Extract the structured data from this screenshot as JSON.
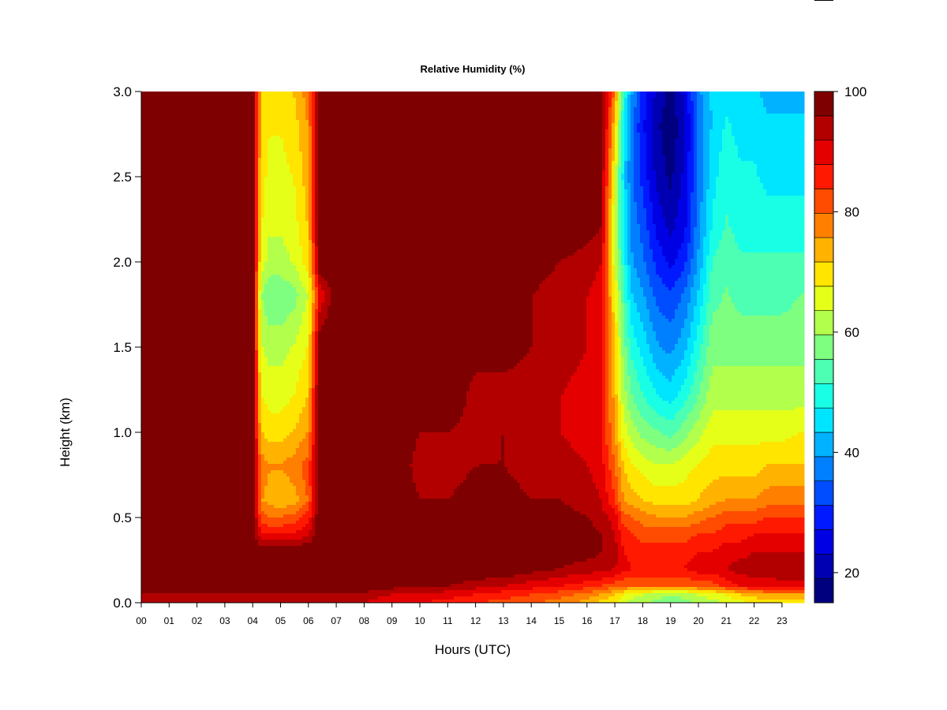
{
  "chart_data": {
    "type": "heatmap",
    "title": "Relative Humidity (%)",
    "xlabel": "Hours (UTC)",
    "ylabel": "Height (km)",
    "xlim": [
      0,
      23.8
    ],
    "ylim": [
      0.0,
      3.0
    ],
    "x_ticks": [
      "00",
      "01",
      "02",
      "03",
      "04",
      "05",
      "06",
      "07",
      "08",
      "09",
      "10",
      "11",
      "12",
      "13",
      "14",
      "15",
      "16",
      "17",
      "18",
      "19",
      "20",
      "21",
      "22",
      "23"
    ],
    "y_ticks": [
      "0.0",
      "0.5",
      "1.0",
      "1.5",
      "2.0",
      "2.5",
      "3.0"
    ],
    "colorbar": {
      "levels": [
        15,
        20,
        25,
        30,
        35,
        40,
        45,
        50,
        55,
        60,
        65,
        70,
        75,
        80,
        85,
        90,
        95,
        100
      ],
      "colors": [
        "#00007f",
        "#0000b2",
        "#0000e5",
        "#0019ff",
        "#004cff",
        "#007fff",
        "#00b2ff",
        "#00e5ff",
        "#19ffe5",
        "#4cffb2",
        "#7fff7f",
        "#b2ff4c",
        "#e5ff19",
        "#ffe500",
        "#ffb200",
        "#ff7f00",
        "#ff4c00",
        "#ff1900",
        "#e50000",
        "#b20000",
        "#7f0000"
      ],
      "tick_labels": [
        "20",
        "40",
        "60",
        "80",
        "100"
      ],
      "tick_values": [
        20,
        40,
        60,
        80,
        100
      ]
    },
    "columns_hours": [
      0,
      1,
      2,
      3,
      4,
      4.3,
      4.6,
      5,
      5.5,
      6,
      6.4,
      6.8,
      7,
      8,
      9,
      10,
      11,
      12,
      13,
      14,
      15,
      16,
      16.5,
      17,
      17.3,
      17.6,
      18,
      18.5,
      19,
      19.5,
      20,
      20.5,
      21,
      21.5,
      22,
      22.5,
      23,
      23.8
    ],
    "rows_km": [
      0.0,
      0.05,
      0.1,
      0.2,
      0.3,
      0.4,
      0.5,
      0.6,
      0.8,
      1.0,
      1.2,
      1.5,
      1.8,
      2.0,
      2.2,
      2.5,
      2.8,
      3.0
    ],
    "rh_columns": [
      [
        92,
        95,
        100,
        100,
        100,
        100,
        100,
        100,
        100,
        100,
        100,
        100,
        100,
        100,
        100,
        100,
        100,
        100
      ],
      [
        92,
        95,
        100,
        100,
        100,
        100,
        100,
        100,
        100,
        100,
        100,
        100,
        100,
        100,
        100,
        100,
        100,
        100
      ],
      [
        92,
        95,
        100,
        100,
        100,
        100,
        100,
        100,
        100,
        100,
        100,
        100,
        100,
        100,
        100,
        100,
        100,
        100
      ],
      [
        92,
        95,
        100,
        100,
        100,
        100,
        100,
        100,
        100,
        100,
        100,
        100,
        100,
        100,
        100,
        100,
        100,
        100
      ],
      [
        92,
        95,
        100,
        100,
        100,
        100,
        100,
        100,
        100,
        100,
        100,
        100,
        100,
        100,
        100,
        100,
        100,
        100
      ],
      [
        92,
        95,
        100,
        100,
        100,
        88,
        82,
        76,
        78,
        72,
        68,
        64,
        60,
        66,
        68,
        70,
        72,
        72
      ],
      [
        92,
        95,
        100,
        100,
        100,
        88,
        80,
        74,
        76,
        70,
        66,
        62,
        56,
        62,
        64,
        66,
        68,
        70
      ],
      [
        92,
        95,
        100,
        100,
        100,
        88,
        80,
        72,
        76,
        70,
        66,
        62,
        56,
        62,
        64,
        66,
        68,
        70
      ],
      [
        92,
        95,
        100,
        100,
        100,
        88,
        82,
        74,
        78,
        72,
        68,
        64,
        58,
        64,
        66,
        68,
        70,
        72
      ],
      [
        92,
        95,
        100,
        100,
        100,
        92,
        86,
        80,
        82,
        76,
        72,
        68,
        64,
        70,
        72,
        74,
        76,
        78
      ],
      [
        92,
        95,
        100,
        100,
        100,
        100,
        100,
        100,
        100,
        100,
        100,
        100,
        88,
        100,
        100,
        100,
        100,
        100
      ],
      [
        92,
        95,
        100,
        100,
        100,
        100,
        100,
        100,
        100,
        100,
        100,
        100,
        96,
        100,
        100,
        100,
        100,
        100
      ],
      [
        92,
        95,
        100,
        100,
        100,
        100,
        100,
        100,
        100,
        100,
        100,
        100,
        100,
        100,
        100,
        100,
        100,
        100
      ],
      [
        92,
        95,
        100,
        100,
        100,
        100,
        100,
        100,
        100,
        100,
        100,
        100,
        100,
        100,
        100,
        100,
        100,
        100
      ],
      [
        88,
        92,
        98,
        100,
        100,
        100,
        100,
        100,
        100,
        100,
        100,
        100,
        100,
        100,
        100,
        100,
        100,
        100
      ],
      [
        88,
        92,
        96,
        100,
        100,
        100,
        100,
        96,
        94,
        96,
        100,
        100,
        100,
        100,
        100,
        100,
        100,
        100
      ],
      [
        86,
        90,
        96,
        100,
        100,
        100,
        100,
        96,
        94,
        96,
        100,
        100,
        96,
        100,
        100,
        100,
        100,
        100
      ],
      [
        84,
        88,
        94,
        100,
        100,
        100,
        100,
        98,
        96,
        94,
        94,
        98,
        96,
        100,
        100,
        100,
        100,
        100
      ],
      [
        82,
        86,
        92,
        100,
        100,
        100,
        100,
        98,
        96,
        96,
        94,
        98,
        98,
        100,
        100,
        100,
        100,
        100
      ],
      [
        80,
        84,
        90,
        98,
        100,
        100,
        100,
        96,
        94,
        92,
        94,
        96,
        96,
        98,
        100,
        100,
        100,
        100
      ],
      [
        78,
        82,
        88,
        96,
        98,
        98,
        98,
        96,
        94,
        92,
        92,
        94,
        94,
        96,
        100,
        100,
        100,
        100
      ],
      [
        74,
        78,
        86,
        94,
        98,
        98,
        96,
        94,
        92,
        90,
        90,
        92,
        92,
        94,
        98,
        100,
        100,
        100
      ],
      [
        70,
        76,
        84,
        94,
        96,
        96,
        94,
        92,
        90,
        88,
        88,
        90,
        90,
        92,
        96,
        98,
        100,
        100
      ],
      [
        68,
        72,
        82,
        92,
        94,
        92,
        90,
        84,
        80,
        76,
        74,
        72,
        68,
        64,
        62,
        66,
        72,
        78
      ],
      [
        64,
        68,
        80,
        90,
        88,
        86,
        82,
        76,
        72,
        66,
        62,
        58,
        54,
        50,
        48,
        46,
        48,
        52
      ],
      [
        62,
        66,
        80,
        88,
        86,
        84,
        80,
        74,
        68,
        62,
        56,
        50,
        44,
        40,
        38,
        36,
        36,
        40
      ],
      [
        60,
        64,
        80,
        88,
        86,
        82,
        78,
        72,
        66,
        58,
        52,
        46,
        40,
        36,
        34,
        30,
        28,
        30
      ],
      [
        58,
        62,
        80,
        88,
        86,
        82,
        76,
        70,
        64,
        56,
        48,
        40,
        34,
        30,
        26,
        22,
        20,
        22
      ],
      [
        56,
        60,
        80,
        88,
        86,
        82,
        76,
        70,
        64,
        54,
        46,
        38,
        32,
        26,
        22,
        18,
        16,
        18
      ],
      [
        58,
        62,
        80,
        88,
        86,
        82,
        76,
        70,
        66,
        58,
        50,
        42,
        36,
        30,
        26,
        24,
        22,
        24
      ],
      [
        60,
        64,
        82,
        90,
        88,
        84,
        78,
        72,
        68,
        62,
        56,
        50,
        44,
        40,
        38,
        36,
        36,
        38
      ],
      [
        62,
        66,
        82,
        90,
        88,
        84,
        80,
        74,
        70,
        66,
        62,
        58,
        54,
        52,
        48,
        46,
        44,
        44
      ],
      [
        64,
        68,
        86,
        92,
        90,
        86,
        82,
        76,
        70,
        66,
        62,
        58,
        56,
        54,
        52,
        50,
        48,
        46
      ],
      [
        66,
        72,
        88,
        94,
        90,
        86,
        82,
        76,
        70,
        66,
        62,
        58,
        54,
        52,
        50,
        48,
        46,
        44
      ],
      [
        68,
        74,
        90,
        94,
        92,
        88,
        82,
        76,
        70,
        66,
        62,
        58,
        54,
        52,
        50,
        48,
        46,
        44
      ],
      [
        70,
        76,
        90,
        94,
        92,
        88,
        84,
        78,
        72,
        66,
        62,
        58,
        54,
        52,
        50,
        46,
        44,
        42
      ],
      [
        70,
        76,
        90,
        96,
        92,
        88,
        84,
        78,
        72,
        66,
        62,
        58,
        54,
        52,
        50,
        46,
        44,
        42
      ],
      [
        70,
        76,
        90,
        96,
        92,
        88,
        84,
        78,
        72,
        68,
        62,
        58,
        56,
        52,
        50,
        46,
        44,
        42
      ]
    ]
  }
}
